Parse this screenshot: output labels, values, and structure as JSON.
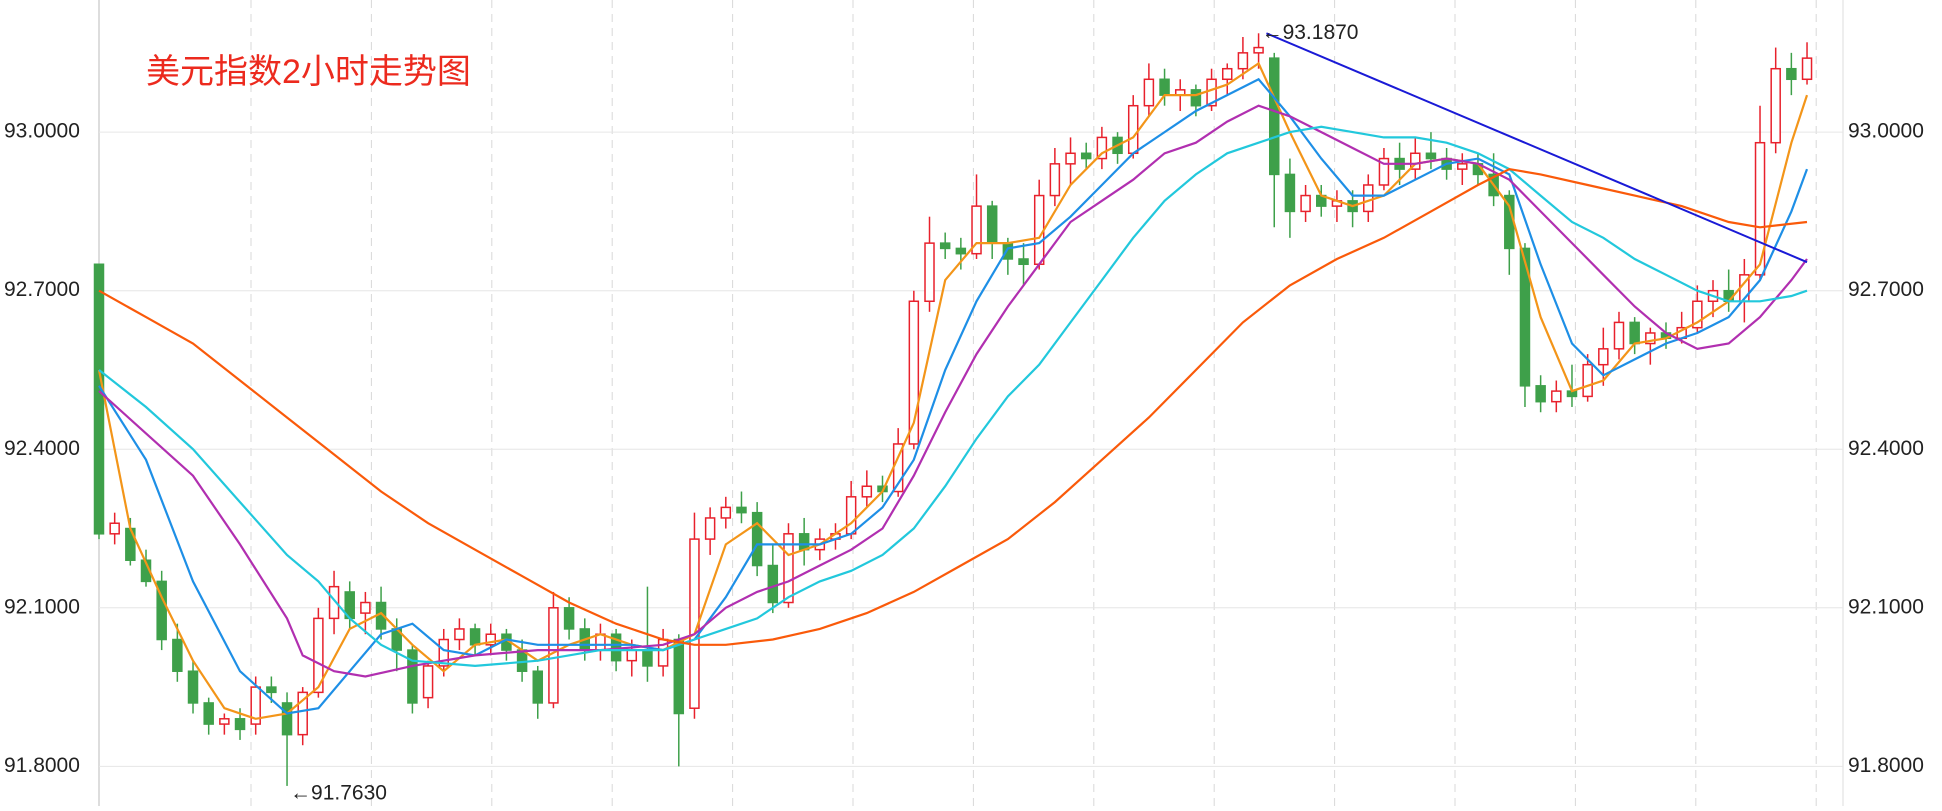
{
  "chart_data": {
    "type": "candlestick",
    "title": "美元指数2小时走势图",
    "ylim": [
      91.725,
      93.25
    ],
    "yticks": [
      {
        "value": 91.8,
        "label": "91.8000"
      },
      {
        "value": 92.1,
        "label": "92.1000"
      },
      {
        "value": 92.4,
        "label": "92.4000"
      },
      {
        "value": 92.7,
        "label": "92.7000"
      },
      {
        "value": 93.0,
        "label": "93.0000"
      }
    ],
    "grid": true,
    "up_color": "#e8212c",
    "down_color": "#3ea04a",
    "candles": [
      [
        92.75,
        92.75,
        92.23,
        92.24
      ],
      [
        92.24,
        92.28,
        92.22,
        92.26
      ],
      [
        92.25,
        92.27,
        92.18,
        92.19
      ],
      [
        92.19,
        92.21,
        92.14,
        92.15
      ],
      [
        92.15,
        92.17,
        92.02,
        92.04
      ],
      [
        92.04,
        92.07,
        91.96,
        91.98
      ],
      [
        91.98,
        92.0,
        91.9,
        91.92
      ],
      [
        91.92,
        91.93,
        91.86,
        91.88
      ],
      [
        91.88,
        91.9,
        91.86,
        91.89
      ],
      [
        91.89,
        91.91,
        91.85,
        91.87
      ],
      [
        91.88,
        91.97,
        91.86,
        91.95
      ],
      [
        91.95,
        91.97,
        91.92,
        91.94
      ],
      [
        91.92,
        91.94,
        91.763,
        91.86
      ],
      [
        91.86,
        91.95,
        91.84,
        91.94
      ],
      [
        91.94,
        92.1,
        91.93,
        92.08
      ],
      [
        92.08,
        92.17,
        92.05,
        92.14
      ],
      [
        92.13,
        92.15,
        92.06,
        92.08
      ],
      [
        92.09,
        92.13,
        92.05,
        92.11
      ],
      [
        92.11,
        92.14,
        92.04,
        92.06
      ],
      [
        92.06,
        92.08,
        91.98,
        92.02
      ],
      [
        92.02,
        92.03,
        91.9,
        91.92
      ],
      [
        91.93,
        92.0,
        91.91,
        91.99
      ],
      [
        91.99,
        92.06,
        91.97,
        92.04
      ],
      [
        92.04,
        92.08,
        92.02,
        92.06
      ],
      [
        92.06,
        92.07,
        92.01,
        92.03
      ],
      [
        92.03,
        92.07,
        92.01,
        92.05
      ],
      [
        92.05,
        92.06,
        92.0,
        92.02
      ],
      [
        92.02,
        92.04,
        91.96,
        91.98
      ],
      [
        91.98,
        91.99,
        91.89,
        91.92
      ],
      [
        91.92,
        92.13,
        91.91,
        92.1
      ],
      [
        92.1,
        92.12,
        92.04,
        92.06
      ],
      [
        92.06,
        92.08,
        92.0,
        92.02
      ],
      [
        92.02,
        92.07,
        92.0,
        92.05
      ],
      [
        92.05,
        92.06,
        91.98,
        92.0
      ],
      [
        92.0,
        92.04,
        91.97,
        92.02
      ],
      [
        92.02,
        92.14,
        91.96,
        91.99
      ],
      [
        91.99,
        92.06,
        91.97,
        92.04
      ],
      [
        92.04,
        92.05,
        91.8,
        91.9
      ],
      [
        91.91,
        92.28,
        91.89,
        92.23
      ],
      [
        92.23,
        92.29,
        92.2,
        92.27
      ],
      [
        92.27,
        92.31,
        92.25,
        92.29
      ],
      [
        92.29,
        92.32,
        92.26,
        92.28
      ],
      [
        92.28,
        92.3,
        92.16,
        92.18
      ],
      [
        92.18,
        92.22,
        92.09,
        92.11
      ],
      [
        92.11,
        92.26,
        92.1,
        92.24
      ],
      [
        92.24,
        92.27,
        92.18,
        92.21
      ],
      [
        92.21,
        92.25,
        92.19,
        92.23
      ],
      [
        92.23,
        92.26,
        92.21,
        92.24
      ],
      [
        92.24,
        92.34,
        92.23,
        92.31
      ],
      [
        92.31,
        92.36,
        92.29,
        92.33
      ],
      [
        92.33,
        92.35,
        92.3,
        92.32
      ],
      [
        92.32,
        92.44,
        92.31,
        92.41
      ],
      [
        92.41,
        92.7,
        92.4,
        92.68
      ],
      [
        92.68,
        92.84,
        92.66,
        92.79
      ],
      [
        92.79,
        92.81,
        92.76,
        92.78
      ],
      [
        92.78,
        92.8,
        92.74,
        92.77
      ],
      [
        92.77,
        92.92,
        92.76,
        92.86
      ],
      [
        92.86,
        92.87,
        92.76,
        92.79
      ],
      [
        92.79,
        92.8,
        92.73,
        92.76
      ],
      [
        92.76,
        92.79,
        92.71,
        92.75
      ],
      [
        92.75,
        92.91,
        92.74,
        92.88
      ],
      [
        92.88,
        92.97,
        92.86,
        92.94
      ],
      [
        92.94,
        92.99,
        92.9,
        92.96
      ],
      [
        92.96,
        92.98,
        92.93,
        92.95
      ],
      [
        92.95,
        93.01,
        92.93,
        92.99
      ],
      [
        92.99,
        93.0,
        92.94,
        92.96
      ],
      [
        92.96,
        93.07,
        92.95,
        93.05
      ],
      [
        93.05,
        93.13,
        93.03,
        93.1
      ],
      [
        93.1,
        93.12,
        93.05,
        93.07
      ],
      [
        93.07,
        93.1,
        93.04,
        93.08
      ],
      [
        93.08,
        93.09,
        93.03,
        93.05
      ],
      [
        93.05,
        93.12,
        93.04,
        93.1
      ],
      [
        93.1,
        93.13,
        93.07,
        93.12
      ],
      [
        93.12,
        93.18,
        93.1,
        93.15
      ],
      [
        93.15,
        93.187,
        93.12,
        93.16
      ],
      [
        93.14,
        93.15,
        92.82,
        92.92
      ],
      [
        92.92,
        92.95,
        92.8,
        92.85
      ],
      [
        92.85,
        92.9,
        92.83,
        92.88
      ],
      [
        92.88,
        92.9,
        92.84,
        92.86
      ],
      [
        92.86,
        92.89,
        92.83,
        92.87
      ],
      [
        92.87,
        92.89,
        92.82,
        92.85
      ],
      [
        92.85,
        92.92,
        92.83,
        92.9
      ],
      [
        92.9,
        92.97,
        92.89,
        92.95
      ],
      [
        92.95,
        92.98,
        92.9,
        92.93
      ],
      [
        92.93,
        92.99,
        92.91,
        92.96
      ],
      [
        92.96,
        93.0,
        92.93,
        92.95
      ],
      [
        92.95,
        92.97,
        92.91,
        92.93
      ],
      [
        92.93,
        92.96,
        92.9,
        92.94
      ],
      [
        92.94,
        92.96,
        92.9,
        92.92
      ],
      [
        92.92,
        92.96,
        92.86,
        92.88
      ],
      [
        92.88,
        92.89,
        92.73,
        92.78
      ],
      [
        92.78,
        92.79,
        92.48,
        92.52
      ],
      [
        92.52,
        92.54,
        92.47,
        92.49
      ],
      [
        92.49,
        92.53,
        92.47,
        92.51
      ],
      [
        92.51,
        92.56,
        92.48,
        92.5
      ],
      [
        92.5,
        92.58,
        92.49,
        92.56
      ],
      [
        92.56,
        92.63,
        92.52,
        92.59
      ],
      [
        92.59,
        92.66,
        92.57,
        92.64
      ],
      [
        92.64,
        92.65,
        92.58,
        92.6
      ],
      [
        92.6,
        92.63,
        92.56,
        92.62
      ],
      [
        92.62,
        92.64,
        92.59,
        92.61
      ],
      [
        92.61,
        92.66,
        92.6,
        92.63
      ],
      [
        92.63,
        92.71,
        92.62,
        92.68
      ],
      [
        92.68,
        92.72,
        92.65,
        92.7
      ],
      [
        92.7,
        92.74,
        92.66,
        92.68
      ],
      [
        92.68,
        92.76,
        92.64,
        92.73
      ],
      [
        92.73,
        93.05,
        92.72,
        92.98
      ],
      [
        92.98,
        93.16,
        92.96,
        93.12
      ],
      [
        93.12,
        93.15,
        93.07,
        93.1
      ],
      [
        93.1,
        93.17,
        93.09,
        93.14
      ]
    ],
    "series": [
      {
        "color": "#f39519",
        "x": [
          0,
          2,
          4,
          6,
          8,
          10,
          12,
          14,
          16,
          18,
          20,
          22,
          24,
          26,
          28,
          30,
          32,
          34,
          36,
          38,
          40,
          42,
          44,
          46,
          48,
          50,
          52,
          54,
          56,
          58,
          60,
          62,
          64,
          66,
          68,
          70,
          72,
          74,
          76,
          78,
          80,
          82,
          84,
          86,
          88,
          90,
          92,
          94,
          96,
          98,
          100,
          102,
          104,
          106,
          108,
          109
        ],
        "values": [
          92.55,
          92.25,
          92.12,
          92.0,
          91.91,
          91.89,
          91.9,
          91.95,
          92.06,
          92.09,
          92.03,
          91.98,
          92.03,
          92.04,
          92.0,
          92.03,
          92.05,
          92.03,
          92.02,
          92.05,
          92.22,
          92.26,
          92.2,
          92.22,
          92.26,
          92.32,
          92.45,
          92.72,
          92.79,
          92.79,
          92.8,
          92.9,
          92.96,
          92.99,
          93.07,
          93.07,
          93.09,
          93.13,
          93.0,
          92.88,
          92.86,
          92.88,
          92.94,
          92.95,
          92.94,
          92.86,
          92.65,
          92.51,
          92.53,
          92.6,
          92.61,
          92.64,
          92.68,
          92.75,
          92.98,
          93.07
        ]
      },
      {
        "color": "#1e8fe6",
        "x": [
          0,
          3,
          6,
          9,
          12,
          14,
          16,
          18,
          20,
          22,
          24,
          26,
          28,
          30,
          32,
          34,
          36,
          38,
          40,
          42,
          44,
          46,
          48,
          50,
          52,
          54,
          56,
          58,
          60,
          62,
          64,
          66,
          68,
          70,
          72,
          74,
          76,
          78,
          80,
          82,
          84,
          86,
          88,
          90,
          92,
          94,
          96,
          98,
          100,
          102,
          104,
          106,
          108,
          109
        ],
        "values": [
          92.52,
          92.38,
          92.15,
          91.98,
          91.9,
          91.91,
          91.98,
          92.05,
          92.07,
          92.02,
          92.01,
          92.04,
          92.03,
          92.03,
          92.03,
          92.03,
          92.02,
          92.04,
          92.12,
          92.22,
          92.22,
          92.22,
          92.24,
          92.29,
          92.38,
          92.55,
          92.68,
          92.78,
          92.79,
          92.84,
          92.9,
          92.96,
          93.0,
          93.04,
          93.07,
          93.1,
          93.03,
          92.95,
          92.88,
          92.88,
          92.91,
          92.94,
          92.95,
          92.92,
          92.75,
          92.6,
          92.54,
          92.57,
          92.6,
          92.62,
          92.65,
          92.72,
          92.85,
          92.93
        ]
      },
      {
        "color": "#b12fb0",
        "x": [
          0,
          3,
          6,
          9,
          12,
          13,
          15,
          17,
          20,
          24,
          28,
          32,
          36,
          38,
          40,
          42,
          44,
          46,
          48,
          50,
          52,
          54,
          56,
          58,
          60,
          62,
          64,
          66,
          68,
          70,
          72,
          74,
          76,
          78,
          80,
          82,
          84,
          86,
          88,
          90,
          92,
          94,
          96,
          98,
          100,
          102,
          104,
          106,
          108,
          109
        ],
        "values": [
          92.51,
          92.43,
          92.35,
          92.22,
          92.08,
          92.01,
          91.98,
          91.97,
          91.99,
          92.01,
          92.02,
          92.02,
          92.03,
          92.05,
          92.1,
          92.13,
          92.15,
          92.18,
          92.21,
          92.25,
          92.35,
          92.47,
          92.58,
          92.67,
          92.75,
          92.83,
          92.87,
          92.91,
          92.96,
          92.98,
          93.02,
          93.05,
          93.03,
          93.0,
          92.97,
          92.94,
          92.94,
          92.95,
          92.94,
          92.91,
          92.85,
          92.79,
          92.73,
          92.67,
          92.62,
          92.59,
          92.6,
          92.65,
          92.72,
          92.76
        ]
      },
      {
        "color": "#22c8dc",
        "x": [
          0,
          3,
          6,
          9,
          12,
          14,
          16,
          18,
          20,
          24,
          28,
          32,
          36,
          38,
          40,
          42,
          44,
          46,
          48,
          50,
          52,
          54,
          56,
          58,
          60,
          62,
          64,
          66,
          68,
          70,
          72,
          74,
          76,
          78,
          80,
          82,
          84,
          86,
          88,
          90,
          92,
          94,
          96,
          98,
          100,
          102,
          104,
          106,
          108,
          109
        ],
        "values": [
          92.55,
          92.48,
          92.4,
          92.3,
          92.2,
          92.15,
          92.08,
          92.03,
          92.0,
          91.99,
          92.0,
          92.02,
          92.02,
          92.04,
          92.06,
          92.08,
          92.12,
          92.15,
          92.17,
          92.2,
          92.25,
          92.33,
          92.42,
          92.5,
          92.56,
          92.64,
          92.72,
          92.8,
          92.87,
          92.92,
          92.96,
          92.98,
          93.0,
          93.01,
          93.0,
          92.99,
          92.99,
          92.98,
          92.96,
          92.93,
          92.88,
          92.83,
          92.8,
          92.76,
          92.73,
          92.7,
          92.68,
          92.68,
          92.69,
          92.7
        ]
      },
      {
        "color": "#fa5a0a",
        "x": [
          0,
          3,
          6,
          9,
          12,
          15,
          18,
          21,
          24,
          27,
          30,
          33,
          36,
          38,
          40,
          43,
          46,
          49,
          52,
          55,
          58,
          61,
          64,
          67,
          70,
          73,
          76,
          79,
          82,
          85,
          88,
          90,
          92,
          95,
          98,
          101,
          104,
          106,
          109
        ],
        "values": [
          92.7,
          92.65,
          92.6,
          92.53,
          92.46,
          92.39,
          92.32,
          92.26,
          92.21,
          92.16,
          92.11,
          92.07,
          92.04,
          92.03,
          92.03,
          92.04,
          92.06,
          92.09,
          92.13,
          92.18,
          92.23,
          92.3,
          92.38,
          92.46,
          92.55,
          92.64,
          92.71,
          92.76,
          92.8,
          92.85,
          92.9,
          92.93,
          92.92,
          92.9,
          92.88,
          92.86,
          92.83,
          92.82,
          92.83
        ]
      }
    ],
    "trendline": {
      "color": "#1a1ad6",
      "x": [
        74.5,
        109
      ],
      "values": [
        93.187,
        92.754
      ]
    },
    "annotations": [
      {
        "text": "←93.1870",
        "x": 74,
        "value": 93.187
      },
      {
        "text": "←91.7630",
        "x": 12,
        "value": 91.763
      }
    ]
  }
}
